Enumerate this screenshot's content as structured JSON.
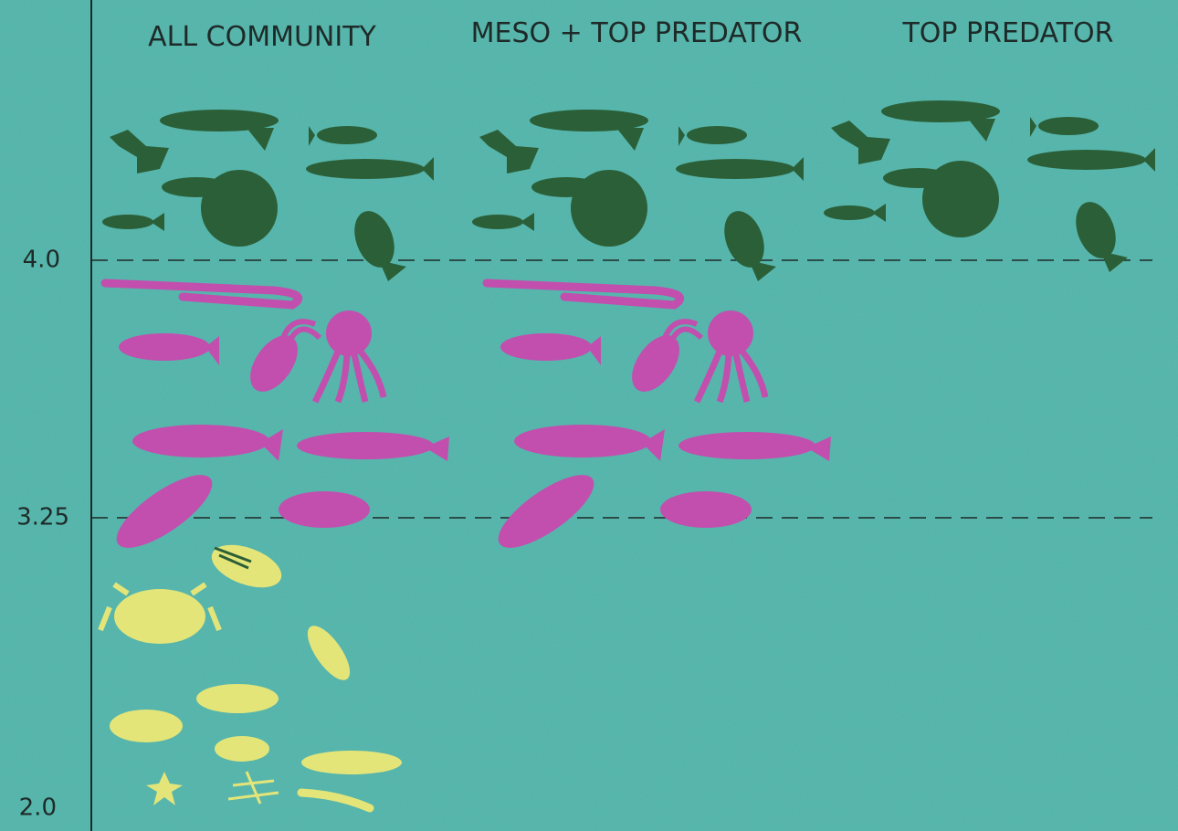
{
  "columns": [
    "ALL COMMUNITY",
    "MESO + TOP PREDATOR",
    "TOP PREDATOR"
  ],
  "axis": {
    "labels": [
      "4.0",
      "3.25",
      "2.0"
    ]
  }
}
